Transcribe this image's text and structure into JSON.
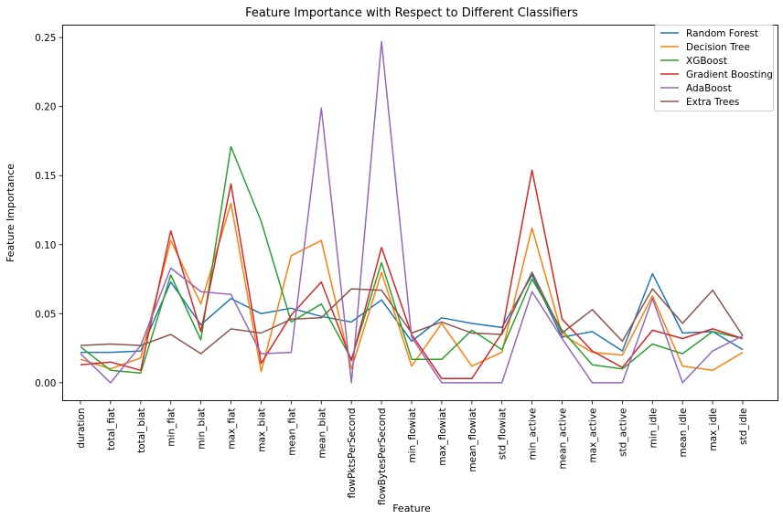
{
  "chart_data": {
    "type": "line",
    "title": "Feature Importance with Respect to Different Classifiers",
    "xlabel": "Feature",
    "ylabel": "Feature Importance",
    "ylim": [
      -0.013,
      0.259
    ],
    "yticks": [
      "0.00",
      "0.05",
      "0.10",
      "0.15",
      "0.20",
      "0.25"
    ],
    "grid": false,
    "legend_position": "top-right",
    "categories": [
      "duration",
      "total_fiat",
      "total_biat",
      "min_fiat",
      "min_biat",
      "max_fiat",
      "max_biat",
      "mean_fiat",
      "mean_biat",
      "flowPktsPerSecond",
      "flowBytesPerSecond",
      "min_flowiat",
      "max_flowiat",
      "mean_flowiat",
      "std_flowiat",
      "min_active",
      "mean_active",
      "max_active",
      "std_active",
      "min_idle",
      "mean_idle",
      "max_idle",
      "std_idle"
    ],
    "series": [
      {
        "name": "Random Forest",
        "color": "#1f77b4",
        "values": [
          0.022,
          0.022,
          0.023,
          0.073,
          0.042,
          0.061,
          0.05,
          0.054,
          0.048,
          0.044,
          0.06,
          0.03,
          0.047,
          0.043,
          0.04,
          0.078,
          0.033,
          0.037,
          0.023,
          0.079,
          0.036,
          0.037,
          0.024
        ]
      },
      {
        "name": "Decision Tree",
        "color": "#ff7f0e",
        "values": [
          0.017,
          0.01,
          0.018,
          0.103,
          0.057,
          0.13,
          0.008,
          0.092,
          0.103,
          0.01,
          0.08,
          0.012,
          0.043,
          0.012,
          0.022,
          0.112,
          0.035,
          0.022,
          0.02,
          0.063,
          0.012,
          0.009,
          0.022
        ]
      },
      {
        "name": "XGBoost",
        "color": "#2ca02c",
        "values": [
          0.026,
          0.009,
          0.007,
          0.078,
          0.031,
          0.171,
          0.117,
          0.044,
          0.057,
          0.017,
          0.087,
          0.017,
          0.017,
          0.038,
          0.024,
          0.075,
          0.038,
          0.013,
          0.01,
          0.028,
          0.021,
          0.037,
          0.032
        ]
      },
      {
        "name": "Gradient Boosting",
        "color": "#d62728",
        "values": [
          0.013,
          0.015,
          0.009,
          0.11,
          0.037,
          0.144,
          0.014,
          0.049,
          0.073,
          0.016,
          0.098,
          0.035,
          0.003,
          0.003,
          0.036,
          0.154,
          0.046,
          0.023,
          0.011,
          0.038,
          0.032,
          0.039,
          0.032
        ]
      },
      {
        "name": "AdaBoost",
        "color": "#9467bd",
        "values": [
          0.021,
          0.0,
          0.027,
          0.083,
          0.066,
          0.064,
          0.021,
          0.022,
          0.199,
          0.0,
          0.247,
          0.033,
          0.0,
          0.0,
          0.0,
          0.066,
          0.032,
          0.0,
          0.0,
          0.061,
          0.0,
          0.023,
          0.034
        ]
      },
      {
        "name": "Extra Trees",
        "color": "#8c564b",
        "values": [
          0.027,
          0.028,
          0.027,
          0.035,
          0.021,
          0.039,
          0.036,
          0.046,
          0.047,
          0.068,
          0.067,
          0.036,
          0.044,
          0.036,
          0.035,
          0.08,
          0.036,
          0.053,
          0.03,
          0.068,
          0.043,
          0.067,
          0.034
        ]
      }
    ]
  }
}
